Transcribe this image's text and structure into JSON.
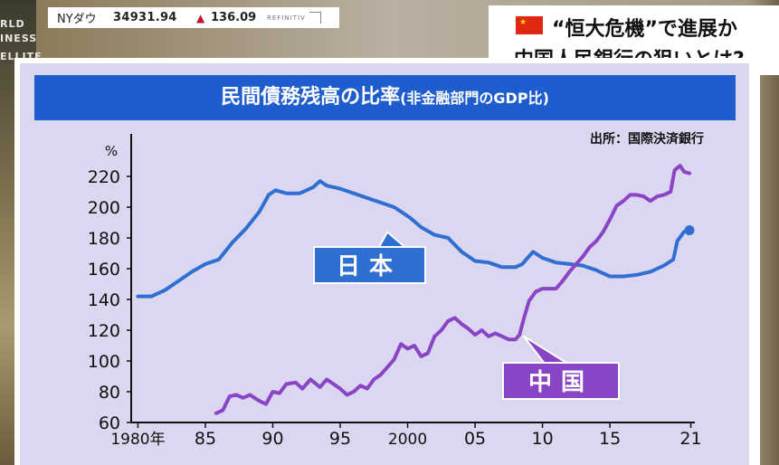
{
  "ticker": {
    "name": "NYダウ",
    "value": "34931.94",
    "arrow": "▲",
    "change": "136.09",
    "source": "REFINITIV"
  },
  "background_text": [
    "RLD",
    "INESS",
    "ELLITE"
  ],
  "headline": {
    "line1": "“恒大危機”で進展か",
    "line2": "中国人民銀行の狙いとは?"
  },
  "chart_data": {
    "type": "line",
    "title": "民間債務残高の比率",
    "subtitle": "(非金融部門のGDP比)",
    "source": "出所：国際決済銀行",
    "ylabel": "%",
    "ylim": [
      60,
      230
    ],
    "xlim": [
      1979.5,
      2021.3
    ],
    "yticks": [
      60,
      80,
      100,
      120,
      140,
      160,
      180,
      200,
      220
    ],
    "xticks": [
      {
        "x": 1980,
        "label": "1980年"
      },
      {
        "x": 1985,
        "label": "85"
      },
      {
        "x": 1990,
        "label": "90"
      },
      {
        "x": 1995,
        "label": "95"
      },
      {
        "x": 2000,
        "label": "2000"
      },
      {
        "x": 2005,
        "label": "05"
      },
      {
        "x": 2010,
        "label": "10"
      },
      {
        "x": 2015,
        "label": "15"
      },
      {
        "x": 2021,
        "label": "21"
      }
    ],
    "series": [
      {
        "name": "日本",
        "color": "#2f6fd1",
        "points": [
          [
            1980.0,
            142
          ],
          [
            1981.0,
            142
          ],
          [
            1981.5,
            144
          ],
          [
            1982.0,
            146
          ],
          [
            1983.0,
            152
          ],
          [
            1984.0,
            158
          ],
          [
            1985.0,
            163
          ],
          [
            1986.0,
            166
          ],
          [
            1987.0,
            177
          ],
          [
            1988.0,
            186
          ],
          [
            1989.0,
            197
          ],
          [
            1989.7,
            208
          ],
          [
            1990.2,
            211
          ],
          [
            1991.0,
            209
          ],
          [
            1992.0,
            209
          ],
          [
            1993.0,
            213
          ],
          [
            1993.5,
            217
          ],
          [
            1994.0,
            214
          ],
          [
            1995.0,
            212
          ],
          [
            1996.0,
            209
          ],
          [
            1997.0,
            206
          ],
          [
            1998.0,
            203
          ],
          [
            1999.0,
            200
          ],
          [
            1999.7,
            196
          ],
          [
            2000.2,
            193
          ],
          [
            2001.0,
            187
          ],
          [
            2002.0,
            182
          ],
          [
            2003.0,
            180
          ],
          [
            2004.0,
            171
          ],
          [
            2005.0,
            165
          ],
          [
            2006.0,
            164
          ],
          [
            2007.0,
            161
          ],
          [
            2008.0,
            161
          ],
          [
            2008.5,
            163
          ],
          [
            2009.3,
            171
          ],
          [
            2010.0,
            167
          ],
          [
            2011.0,
            164
          ],
          [
            2012.0,
            163
          ],
          [
            2013.0,
            162
          ],
          [
            2014.0,
            159
          ],
          [
            2015.0,
            155
          ],
          [
            2016.0,
            155
          ],
          [
            2017.0,
            156
          ],
          [
            2018.0,
            158
          ],
          [
            2019.0,
            162
          ],
          [
            2019.7,
            166
          ],
          [
            2020.0,
            178
          ],
          [
            2020.5,
            184
          ],
          [
            2020.9,
            185
          ]
        ]
      },
      {
        "name": "中国",
        "color": "#8a44c6",
        "points": [
          [
            1985.8,
            66
          ],
          [
            1986.3,
            68
          ],
          [
            1986.8,
            77
          ],
          [
            1987.3,
            78
          ],
          [
            1987.8,
            76
          ],
          [
            1988.3,
            78
          ],
          [
            1989.0,
            74
          ],
          [
            1989.5,
            72
          ],
          [
            1990.0,
            80
          ],
          [
            1990.5,
            79
          ],
          [
            1991.0,
            85
          ],
          [
            1991.7,
            86
          ],
          [
            1992.2,
            82
          ],
          [
            1992.8,
            88
          ],
          [
            1993.5,
            83
          ],
          [
            1994.0,
            88
          ],
          [
            1994.5,
            85
          ],
          [
            1995.0,
            82
          ],
          [
            1995.5,
            78
          ],
          [
            1996.0,
            80
          ],
          [
            1996.5,
            84
          ],
          [
            1997.0,
            82
          ],
          [
            1997.5,
            88
          ],
          [
            1998.0,
            91
          ],
          [
            1998.5,
            96
          ],
          [
            1999.0,
            101
          ],
          [
            1999.5,
            111
          ],
          [
            2000.0,
            108
          ],
          [
            2000.5,
            110
          ],
          [
            2001.0,
            103
          ],
          [
            2001.5,
            105
          ],
          [
            2002.0,
            116
          ],
          [
            2002.5,
            120
          ],
          [
            2003.0,
            126
          ],
          [
            2003.5,
            128
          ],
          [
            2004.0,
            124
          ],
          [
            2004.5,
            121
          ],
          [
            2005.0,
            117
          ],
          [
            2005.5,
            120
          ],
          [
            2006.0,
            116
          ],
          [
            2006.5,
            118
          ],
          [
            2007.0,
            116
          ],
          [
            2007.5,
            114
          ],
          [
            2008.0,
            114
          ],
          [
            2008.3,
            117
          ],
          [
            2008.6,
            127
          ],
          [
            2009.0,
            139
          ],
          [
            2009.5,
            145
          ],
          [
            2010.0,
            147
          ],
          [
            2010.5,
            147
          ],
          [
            2011.0,
            147
          ],
          [
            2011.5,
            152
          ],
          [
            2012.0,
            158
          ],
          [
            2012.5,
            163
          ],
          [
            2013.0,
            168
          ],
          [
            2013.5,
            174
          ],
          [
            2014.0,
            178
          ],
          [
            2014.5,
            184
          ],
          [
            2015.0,
            192
          ],
          [
            2015.5,
            201
          ],
          [
            2016.0,
            204
          ],
          [
            2016.5,
            208
          ],
          [
            2017.0,
            208
          ],
          [
            2017.5,
            207
          ],
          [
            2018.0,
            204
          ],
          [
            2018.5,
            207
          ],
          [
            2019.0,
            208
          ],
          [
            2019.5,
            210
          ],
          [
            2019.8,
            224
          ],
          [
            2020.2,
            227
          ],
          [
            2020.5,
            223
          ],
          [
            2020.9,
            222
          ]
        ]
      }
    ],
    "labels": [
      {
        "series": "日本",
        "text": "日本"
      },
      {
        "series": "中国",
        "text": "中国"
      }
    ]
  }
}
